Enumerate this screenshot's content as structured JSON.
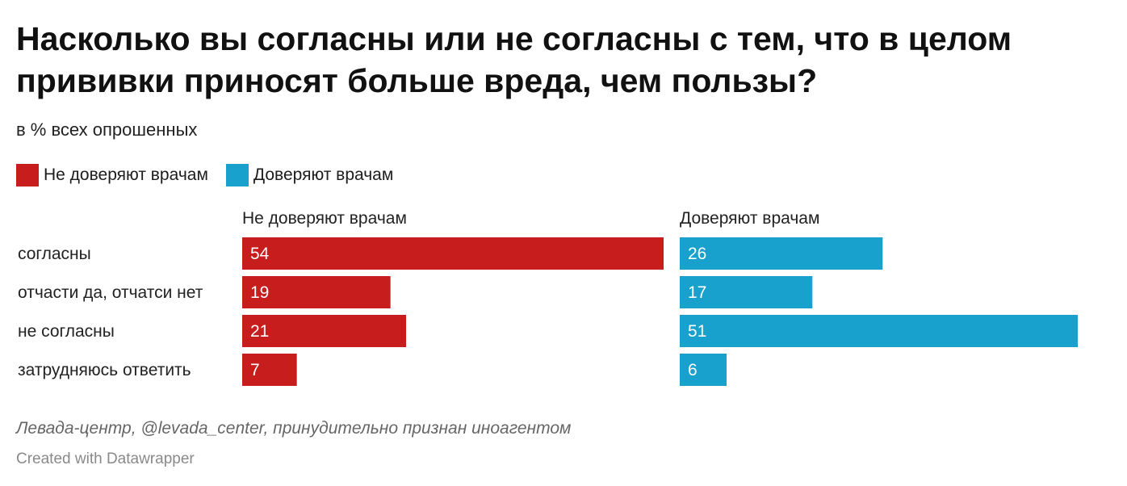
{
  "chart_data": {
    "type": "bar",
    "title": "Насколько вы согласны или не согласны с тем, что в целом прививки приносят больше вреда, чем пользы?",
    "subtitle": "в % всех опрошенных",
    "categories": [
      "согласны",
      "отчасти да, отчатси нет",
      "не согласны",
      "затрудняюсь ответить"
    ],
    "series": [
      {
        "name": "Не доверяют врачам",
        "color": "#c71e1d",
        "values": [
          54,
          19,
          21,
          7
        ]
      },
      {
        "name": "Доверяют врачам",
        "color": "#18a1cd",
        "values": [
          26,
          17,
          51,
          6
        ]
      }
    ],
    "legend_position": "top-left",
    "grid": false,
    "notes": "Левада-центр, @levada_center, принудительно признан иноагентом",
    "credit": "Created with Datawrapper"
  }
}
